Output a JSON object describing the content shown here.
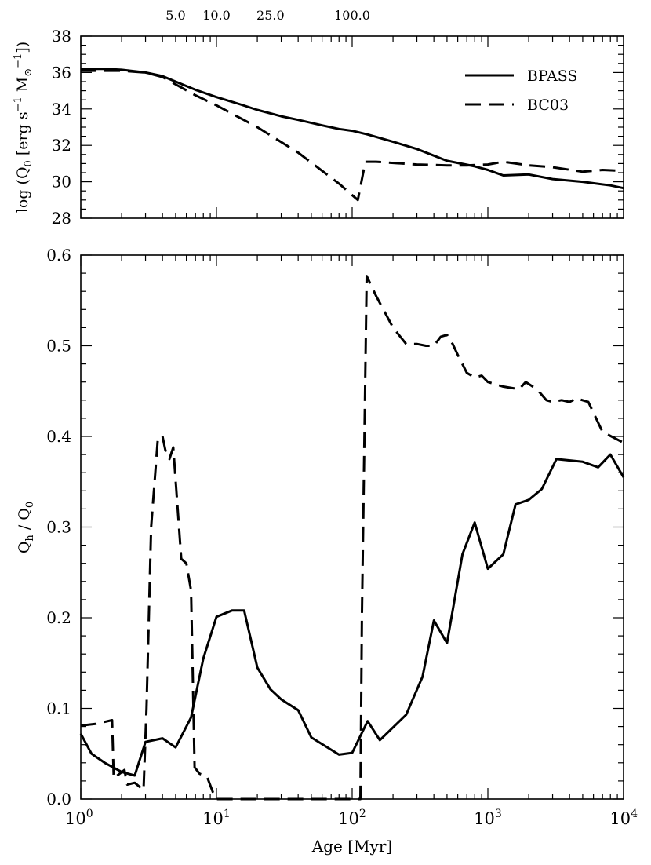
{
  "chart_data": [
    {
      "type": "line",
      "x_scale": "log",
      "xlim": [
        1,
        10000
      ],
      "ylim": [
        28,
        38
      ],
      "ylabel": "log (Q0 [erg s^-1 M⊙^-1])",
      "ytick_labels": [
        "28",
        "30",
        "32",
        "34",
        "36",
        "38"
      ],
      "top_axis_tick_labels": [
        "5.0",
        "10.0",
        "25.0",
        "100.0"
      ],
      "legend_placement": "top-right",
      "series": [
        {
          "name": "BPASS",
          "style": "solid",
          "x": [
            1,
            1.5,
            2,
            3,
            4,
            5,
            7,
            10,
            15,
            20,
            30,
            40,
            60,
            80,
            100,
            130,
            200,
            300,
            500,
            800,
            1000,
            1300,
            2000,
            3000,
            5000,
            8000,
            10000
          ],
          "y": [
            36.2,
            36.2,
            36.15,
            36.0,
            35.8,
            35.5,
            35.05,
            34.65,
            34.25,
            33.95,
            33.6,
            33.4,
            33.1,
            32.9,
            32.8,
            32.6,
            32.2,
            31.8,
            31.15,
            30.85,
            30.65,
            30.35,
            30.4,
            30.15,
            30.0,
            29.8,
            29.65
          ]
        },
        {
          "name": "BC03",
          "style": "dashed",
          "x": [
            1,
            2,
            3,
            4,
            5,
            7,
            10,
            20,
            40,
            80,
            110,
            125,
            150,
            300,
            500,
            700,
            1000,
            1300,
            2000,
            3000,
            5000,
            7000,
            10000
          ],
          "y": [
            36.1,
            36.1,
            36.0,
            35.75,
            35.35,
            34.75,
            34.2,
            33.0,
            31.6,
            29.9,
            29.0,
            31.1,
            31.1,
            30.95,
            30.9,
            30.9,
            30.95,
            31.1,
            30.9,
            30.8,
            30.55,
            30.65,
            30.6
          ]
        }
      ]
    },
    {
      "type": "line",
      "x_scale": "log",
      "xlim": [
        1,
        10000
      ],
      "ylim": [
        0.0,
        0.6
      ],
      "xlabel": "Age [Myr]",
      "ylabel": "Qh / Q0",
      "xtick_labels": [
        "10^0",
        "10^1",
        "10^2",
        "10^3",
        "10^4"
      ],
      "ytick_labels": [
        "0.0",
        "0.1",
        "0.2",
        "0.3",
        "0.4",
        "0.5",
        "0.6"
      ],
      "series": [
        {
          "name": "BPASS",
          "style": "solid",
          "x": [
            1,
            1.2,
            1.5,
            2,
            2.5,
            3,
            4,
            5,
            6.5,
            8,
            10,
            13,
            16,
            20,
            25,
            30,
            40,
            50,
            80,
            100,
            130,
            160,
            250,
            330,
            400,
            500,
            650,
            800,
            1000,
            1300,
            1600,
            2000,
            2500,
            3200,
            5000,
            6500,
            8000,
            10000
          ],
          "y": [
            0.072,
            0.05,
            0.04,
            0.03,
            0.026,
            0.063,
            0.067,
            0.057,
            0.09,
            0.155,
            0.201,
            0.208,
            0.208,
            0.145,
            0.121,
            0.11,
            0.098,
            0.068,
            0.049,
            0.051,
            0.086,
            0.065,
            0.093,
            0.135,
            0.197,
            0.172,
            0.27,
            0.305,
            0.254,
            0.27,
            0.325,
            0.33,
            0.342,
            0.375,
            0.372,
            0.366,
            0.38,
            0.355
          ]
        },
        {
          "name": "BC03",
          "style": "dashed",
          "x": [
            1,
            1.3,
            1.7,
            1.75,
            2.1,
            2.2,
            2.5,
            2.9,
            3.05,
            3.3,
            3.7,
            4.0,
            4.2,
            4.5,
            4.8,
            5.5,
            6.0,
            6.5,
            6.9,
            7.5,
            8.5,
            9.5,
            10,
            20,
            50,
            100,
            115,
            118,
            128,
            150,
            200,
            250,
            300,
            350,
            400,
            450,
            500,
            550,
            600,
            700,
            800,
            900,
            1000,
            1300,
            1700,
            1900,
            2300,
            2700,
            3000,
            3500,
            4000,
            4500,
            5500,
            7000,
            10000
          ],
          "y": [
            0.081,
            0.083,
            0.087,
            0.023,
            0.032,
            0.016,
            0.018,
            0.01,
            0.1,
            0.3,
            0.398,
            0.4,
            0.385,
            0.375,
            0.388,
            0.265,
            0.26,
            0.23,
            0.035,
            0.028,
            0.025,
            0.006,
            0.0,
            0.0,
            0.0,
            0.0,
            0.0,
            0.2,
            0.577,
            0.555,
            0.52,
            0.502,
            0.502,
            0.5,
            0.5,
            0.51,
            0.512,
            0.502,
            0.49,
            0.47,
            0.465,
            0.467,
            0.46,
            0.455,
            0.452,
            0.46,
            0.452,
            0.44,
            0.438,
            0.44,
            0.438,
            0.442,
            0.438,
            0.405,
            0.393
          ]
        }
      ]
    }
  ]
}
